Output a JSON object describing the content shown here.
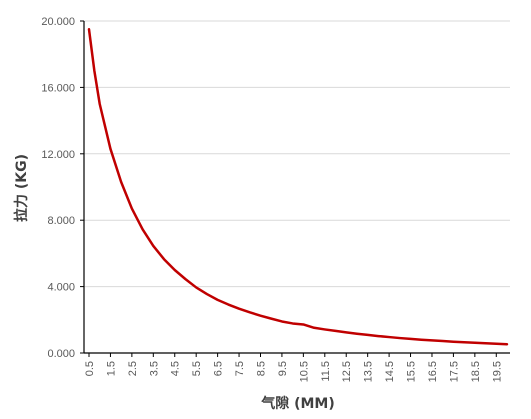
{
  "chart_data": {
    "type": "line",
    "title": "",
    "xlabel": "气隙 (MM)",
    "ylabel": "拉力 (KG)",
    "xlim": [
      0.5,
      20.0
    ],
    "ylim": [
      0,
      20
    ],
    "y_ticks": [
      "0.000",
      "4.000",
      "8.000",
      "12.000",
      "16.000",
      "20.000"
    ],
    "x_ticks": [
      "0.5",
      "1.5",
      "2.5",
      "3.5",
      "4.5",
      "5.5",
      "6.5",
      "7.5",
      "8.5",
      "9.5",
      "10.5",
      "11.5",
      "12.5",
      "13.5",
      "14.5",
      "15.5",
      "16.5",
      "17.5",
      "18.5",
      "19.5"
    ],
    "grid": {
      "horizontal": true,
      "vertical": false
    },
    "series": [
      {
        "color": "#C00000",
        "x": [
          0.5,
          0.75,
          1.0,
          1.5,
          2.0,
          2.5,
          3.0,
          3.5,
          4.0,
          4.5,
          5.0,
          5.5,
          6.0,
          6.5,
          7.0,
          7.5,
          8.0,
          8.5,
          9.0,
          9.5,
          10.0,
          10.5,
          11.0,
          11.5,
          12.0,
          12.5,
          13.0,
          13.5,
          14.0,
          14.5,
          15.0,
          15.5,
          16.0,
          16.5,
          17.0,
          17.5,
          18.0,
          18.5,
          19.0,
          19.5,
          20.0
        ],
        "values": [
          19.5,
          17.0,
          15.0,
          12.3,
          10.3,
          8.7,
          7.45,
          6.45,
          5.65,
          5.0,
          4.45,
          3.95,
          3.55,
          3.2,
          2.92,
          2.67,
          2.45,
          2.25,
          2.07,
          1.9,
          1.78,
          1.72,
          1.52,
          1.42,
          1.33,
          1.24,
          1.16,
          1.09,
          1.02,
          0.96,
          0.9,
          0.85,
          0.8,
          0.76,
          0.72,
          0.68,
          0.65,
          0.62,
          0.59,
          0.56,
          0.53
        ]
      }
    ]
  }
}
